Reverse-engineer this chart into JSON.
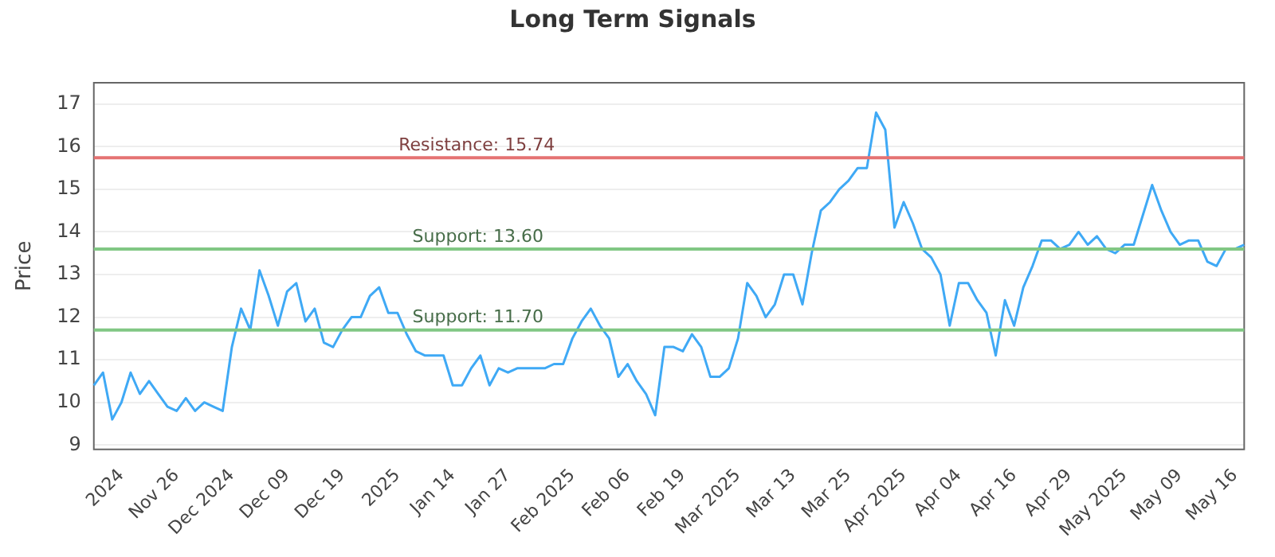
{
  "chart_data": {
    "type": "line",
    "title": "Long Term Signals",
    "ylabel": "Price",
    "categories": [
      null,
      null,
      null,
      "2024",
      null,
      null,
      null,
      null,
      null,
      "Nov 26",
      null,
      null,
      null,
      null,
      null,
      "Dec 2024",
      null,
      null,
      null,
      null,
      null,
      "Dec 09",
      null,
      null,
      null,
      null,
      null,
      "Dec 19",
      null,
      null,
      null,
      null,
      null,
      "2025",
      null,
      null,
      null,
      null,
      null,
      "Jan 14",
      null,
      null,
      null,
      null,
      null,
      "Jan 27",
      null,
      null,
      null,
      null,
      null,
      null,
      "Feb 2025",
      null,
      null,
      null,
      null,
      null,
      "Feb 06",
      null,
      null,
      null,
      null,
      null,
      "Feb 19",
      null,
      null,
      null,
      null,
      null,
      "Mar 2025",
      null,
      null,
      null,
      null,
      null,
      "Mar 13",
      null,
      null,
      null,
      null,
      null,
      "Mar 25",
      null,
      null,
      null,
      null,
      null,
      "Apr 2025",
      null,
      null,
      null,
      null,
      null,
      "Apr 04",
      null,
      null,
      null,
      null,
      null,
      "Apr 16",
      null,
      null,
      null,
      null,
      null,
      "Apr 29",
      null,
      null,
      null,
      null,
      null,
      "May 2025",
      null,
      null,
      null,
      null,
      null,
      "May 09",
      null,
      null,
      null,
      null,
      null,
      "May 16",
      null
    ],
    "series": [
      {
        "color": "#3fa9f5",
        "values": [
          10.4,
          10.7,
          9.6,
          10.0,
          10.7,
          10.2,
          10.5,
          10.2,
          9.9,
          9.8,
          10.1,
          9.8,
          10.0,
          9.9,
          9.8,
          11.3,
          12.2,
          11.7,
          13.1,
          12.5,
          11.8,
          12.6,
          12.8,
          11.9,
          12.2,
          11.4,
          11.3,
          11.7,
          12.0,
          12.0,
          12.5,
          12.7,
          12.1,
          12.1,
          11.6,
          11.2,
          11.1,
          11.1,
          11.1,
          10.4,
          10.4,
          10.8,
          11.1,
          10.4,
          10.8,
          10.7,
          10.8,
          10.8,
          10.8,
          10.8,
          10.9,
          10.9,
          11.5,
          11.9,
          12.2,
          11.8,
          11.5,
          10.6,
          10.9,
          10.5,
          10.2,
          9.7,
          11.3,
          11.3,
          11.2,
          11.6,
          11.3,
          10.6,
          10.6,
          10.8,
          11.5,
          12.8,
          12.5,
          12.0,
          12.3,
          13.0,
          13.0,
          12.3,
          13.5,
          14.5,
          14.7,
          15.0,
          15.2,
          15.5,
          15.5,
          16.8,
          16.4,
          14.1,
          14.7,
          14.2,
          13.6,
          13.4,
          13.0,
          11.8,
          12.8,
          12.8,
          12.4,
          12.1,
          11.1,
          12.4,
          11.8,
          12.7,
          13.2,
          13.8,
          13.8,
          13.6,
          13.7,
          14.0,
          13.7,
          13.9,
          13.6,
          13.5,
          13.7,
          13.7,
          14.4,
          15.1,
          14.5,
          14.0,
          13.7,
          13.8,
          13.8,
          13.3,
          13.2,
          13.6,
          13.6,
          13.7
        ]
      }
    ],
    "ylim": [
      8.9,
      17.5
    ],
    "yticks": [
      9,
      10,
      11,
      12,
      13,
      14,
      15,
      16,
      17
    ],
    "grid": "y",
    "legend": false,
    "marker": "none",
    "line_style": "solid",
    "ref_lines": [
      {
        "axis": "y",
        "value": 15.74,
        "label": "Resistance: 15.74",
        "color": "#e57373"
      },
      {
        "axis": "y",
        "value": 13.6,
        "label": "Support: 13.60",
        "color": "#81c784"
      },
      {
        "axis": "y",
        "value": 11.7,
        "label": "Support: 11.70",
        "color": "#81c784"
      }
    ]
  }
}
